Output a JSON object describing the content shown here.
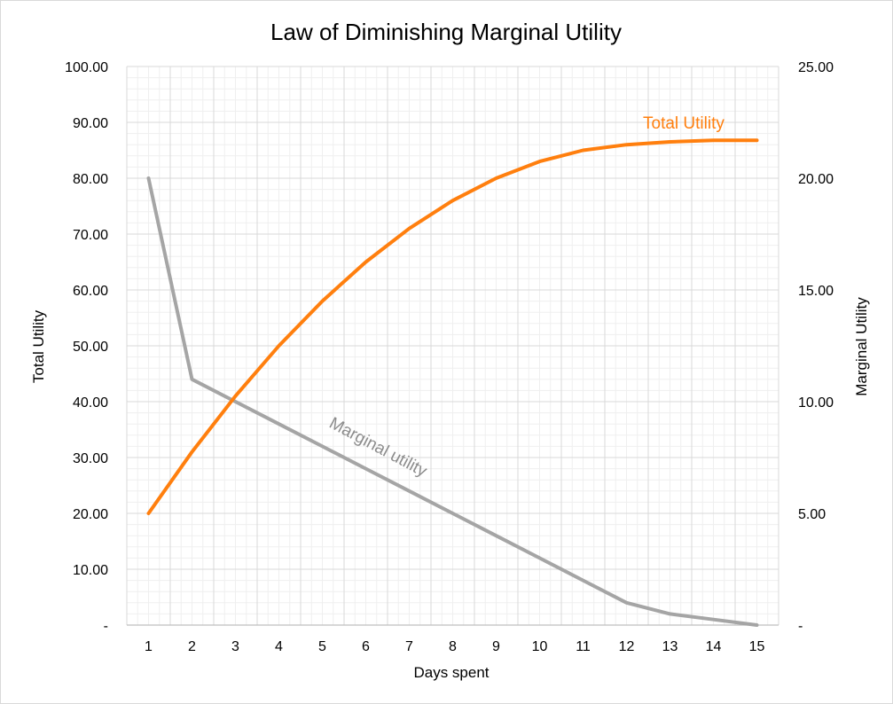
{
  "chart_data": {
    "type": "line",
    "title": "Law of Diminishing Marginal Utility",
    "xlabel": "Days spent",
    "ylabel_left": "Total Utility",
    "ylabel_right": "Marginal Utility",
    "x": [
      1,
      2,
      3,
      4,
      5,
      6,
      7,
      8,
      9,
      10,
      11,
      12,
      13,
      14,
      15
    ],
    "x_tick_labels": [
      "1",
      "2",
      "3",
      "4",
      "5",
      "6",
      "7",
      "8",
      "9",
      "10",
      "11",
      "12",
      "13",
      "14",
      "15"
    ],
    "ylim_left": [
      0,
      100
    ],
    "ylim_right": [
      0,
      25
    ],
    "y_tick_labels_left": [
      "-",
      "10.00",
      "20.00",
      "30.00",
      "40.00",
      "50.00",
      "60.00",
      "70.00",
      "80.00",
      "90.00",
      "100.00"
    ],
    "y_tick_labels_right": [
      "-",
      "5.00",
      "10.00",
      "15.00",
      "20.00",
      "25.00"
    ],
    "grid": true,
    "series": [
      {
        "name": "Total Utility",
        "axis": "left",
        "color": "#ff7f0e",
        "values": [
          20,
          31,
          41,
          50,
          58,
          65,
          71,
          76,
          80,
          83,
          85,
          86,
          86.5,
          86.8,
          86.8
        ]
      },
      {
        "name": "Marginal utility",
        "axis": "right",
        "color": "#a5a5a5",
        "values": [
          20,
          11,
          10,
          9,
          8,
          7,
          6,
          5,
          4,
          3,
          2,
          1,
          0.5,
          0.25,
          0
        ]
      }
    ]
  }
}
